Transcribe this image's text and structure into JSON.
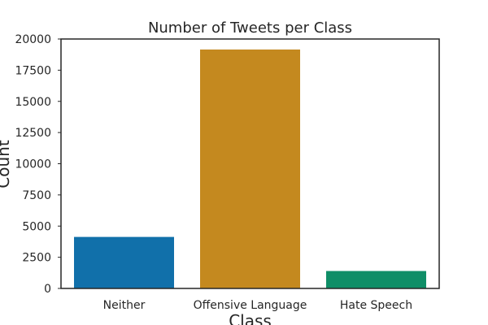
{
  "chart_data": {
    "type": "bar",
    "title": "Number of Tweets per Class",
    "xlabel": "Class",
    "ylabel": "Count",
    "categories": [
      "Neither",
      "Offensive Language",
      "Hate Speech"
    ],
    "values": [
      4163,
      19190,
      1430
    ],
    "colors": [
      "#1170aa",
      "#c4891f",
      "#0f8e67"
    ],
    "ylim": [
      0,
      20000
    ],
    "yticks": [
      0,
      2500,
      5000,
      7500,
      10000,
      12500,
      15000,
      17500,
      20000
    ],
    "grid": false,
    "legend": "none"
  }
}
